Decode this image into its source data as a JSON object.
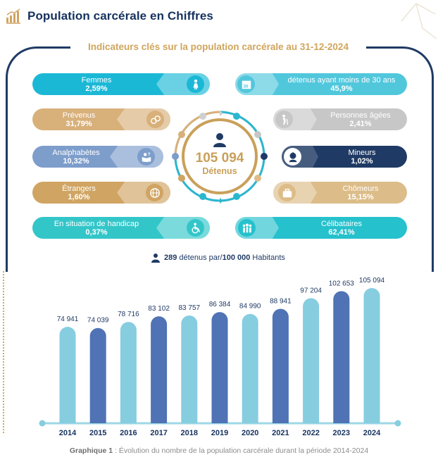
{
  "header": {
    "title": "Population carcérale en Chiffres",
    "icon": "bar-chart-icon"
  },
  "subtitle": "Indicateurs clés sur la population carcérale au 31-12-2024",
  "hub": {
    "value": "105 094",
    "label": "Détenus",
    "icon": "person-icon"
  },
  "indicators_left": [
    {
      "label": "Femmes",
      "value": "2,59%",
      "icon": "woman-icon",
      "color": "#1bb8d6"
    },
    {
      "label": "Prévenus",
      "value": "31,79%",
      "icon": "handcuffs-icon",
      "color": "#d8b07a"
    },
    {
      "label": "Analphabètes",
      "value": "10,32%",
      "icon": "reading-question-icon",
      "color": "#7d9dcb"
    },
    {
      "label": "Étrangers",
      "value": "1,60%",
      "icon": "globe-person-icon",
      "color": "#d0a462"
    },
    {
      "label": "En situation de handicap",
      "value": "0,37%",
      "icon": "wheelchair-icon",
      "color": "#33c6c9"
    }
  ],
  "indicators_right": [
    {
      "label": "détenus ayant moins de 30 ans",
      "value": "45,9%",
      "icon": "calendar-30-icon",
      "color": "#51c7dc"
    },
    {
      "label": "Personnes âgées",
      "value": "2,41%",
      "icon": "elderly-icon",
      "color": "#c7c7c7"
    },
    {
      "label": "Mineurs",
      "value": "1,02%",
      "icon": "child-icon",
      "color": "#1f3a64"
    },
    {
      "label": "Chômeurs",
      "value": "15,15%",
      "icon": "briefcase-icon",
      "color": "#dcbc88"
    },
    {
      "label": "Célibataires",
      "value": "62,41%",
      "icon": "group-icon",
      "color": "#25c1cc"
    }
  ],
  "ratio": {
    "number": "289",
    "middle": "détenus par/",
    "per": "100 000",
    "suffix": "Habitants"
  },
  "chart_data": {
    "type": "bar",
    "title": "",
    "categories": [
      "2014",
      "2015",
      "2016",
      "2017",
      "2018",
      "2019",
      "2020",
      "2021",
      "2022",
      "2023",
      "2024"
    ],
    "values": [
      74941,
      74039,
      78716,
      83102,
      83757,
      86384,
      84990,
      88941,
      97204,
      102653,
      105094
    ],
    "value_labels": [
      "74 941",
      "74 039",
      "78 716",
      "83 102",
      "83 757",
      "86 384",
      "84 990",
      "88 941",
      "97 204",
      "102 653",
      "105 094"
    ],
    "bar_colors": [
      "#86cde0",
      "#4f73b4",
      "#86cde0",
      "#4f73b4",
      "#86cde0",
      "#4f73b4",
      "#86cde0",
      "#4f73b4",
      "#86cde0",
      "#4f73b4",
      "#86cde0"
    ],
    "ylim": [
      0,
      110000
    ],
    "xlabel": "",
    "ylabel": "",
    "grid": false
  },
  "caption": {
    "bold": "Graphique 1",
    "rest": " : Évolution du nombre de la population carcérale durant la période 2014-2024"
  }
}
